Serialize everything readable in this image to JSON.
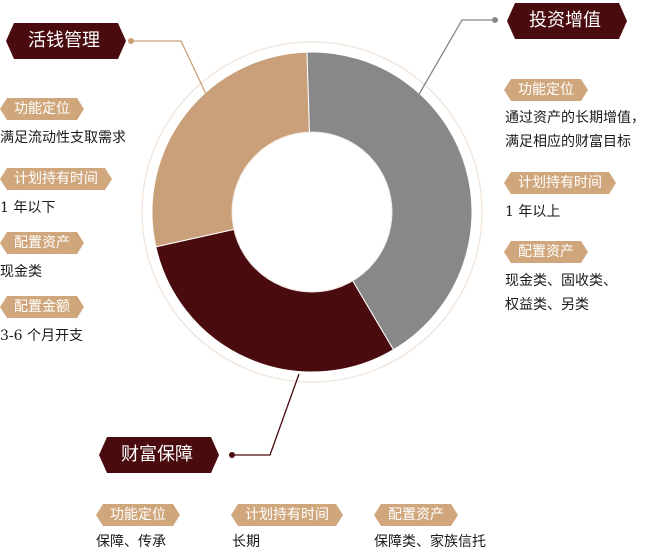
{
  "colors": {
    "liquid": "#c9a07a",
    "invest": "#888888",
    "protect": "#4a0b0f",
    "title_bg": "#4a0b0f",
    "tag_bg": "#d0a77c",
    "outline": "#f0e4da"
  },
  "chart_data": {
    "type": "pie",
    "categories": [
      "活钱管理",
      "投资增值",
      "财富保障"
    ],
    "values": [
      28,
      42,
      30
    ]
  },
  "sections": {
    "liquid": {
      "title": "活钱管理",
      "func_tag": "功能定位",
      "func_text": "满足流动性支取需求",
      "hold_tag": "计划持有时间",
      "hold_text": "1 年以下",
      "alloc_tag": "配置资产",
      "alloc_text": "现金类",
      "amount_tag": "配置金额",
      "amount_text": "3-6 个月开支"
    },
    "invest": {
      "title": "投资增值",
      "func_tag": "功能定位",
      "func_text_1": "通过资产的长期增值，",
      "func_text_2": "满足相应的财富目标",
      "hold_tag": "计划持有时间",
      "hold_text": "1 年以上",
      "alloc_tag": "配置资产",
      "alloc_text_1": "现金类、固收类、",
      "alloc_text_2": "权益类、另类"
    },
    "protect": {
      "title": "财富保障",
      "func_tag": "功能定位",
      "func_text": "保障、传承",
      "hold_tag": "计划持有时间",
      "hold_text": "长期",
      "alloc_tag": "配置资产",
      "alloc_text": "保障类、家族信托"
    }
  }
}
